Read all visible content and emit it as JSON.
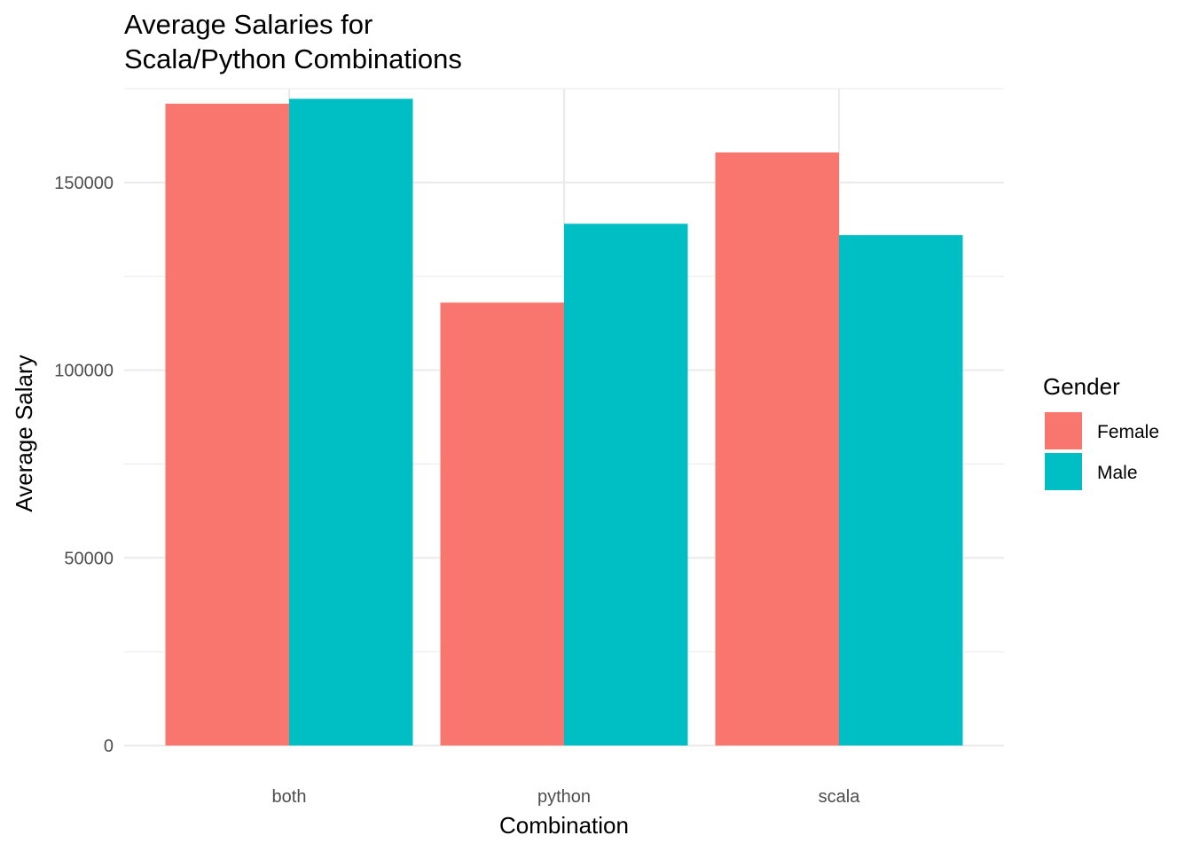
{
  "chart_data": {
    "type": "bar",
    "title_lines": [
      "Average Salaries for",
      "Scala/Python Combinations"
    ],
    "xlabel": "Combination",
    "ylabel": "Average Salary",
    "categories": [
      "both",
      "python",
      "scala"
    ],
    "series": [
      {
        "name": "Female",
        "values": [
          171000,
          118000,
          158000
        ],
        "color": "#F8766D"
      },
      {
        "name": "Male",
        "values": [
          172300,
          139000,
          136000
        ],
        "color": "#00BFC4"
      }
    ],
    "y_ticks": [
      0,
      50000,
      100000,
      150000
    ],
    "y_tick_labels": [
      "0",
      "50000",
      "100000",
      "150000"
    ],
    "ylim": [
      0,
      175000
    ],
    "grid": true,
    "legend": {
      "title": "Gender",
      "position": "right"
    }
  }
}
